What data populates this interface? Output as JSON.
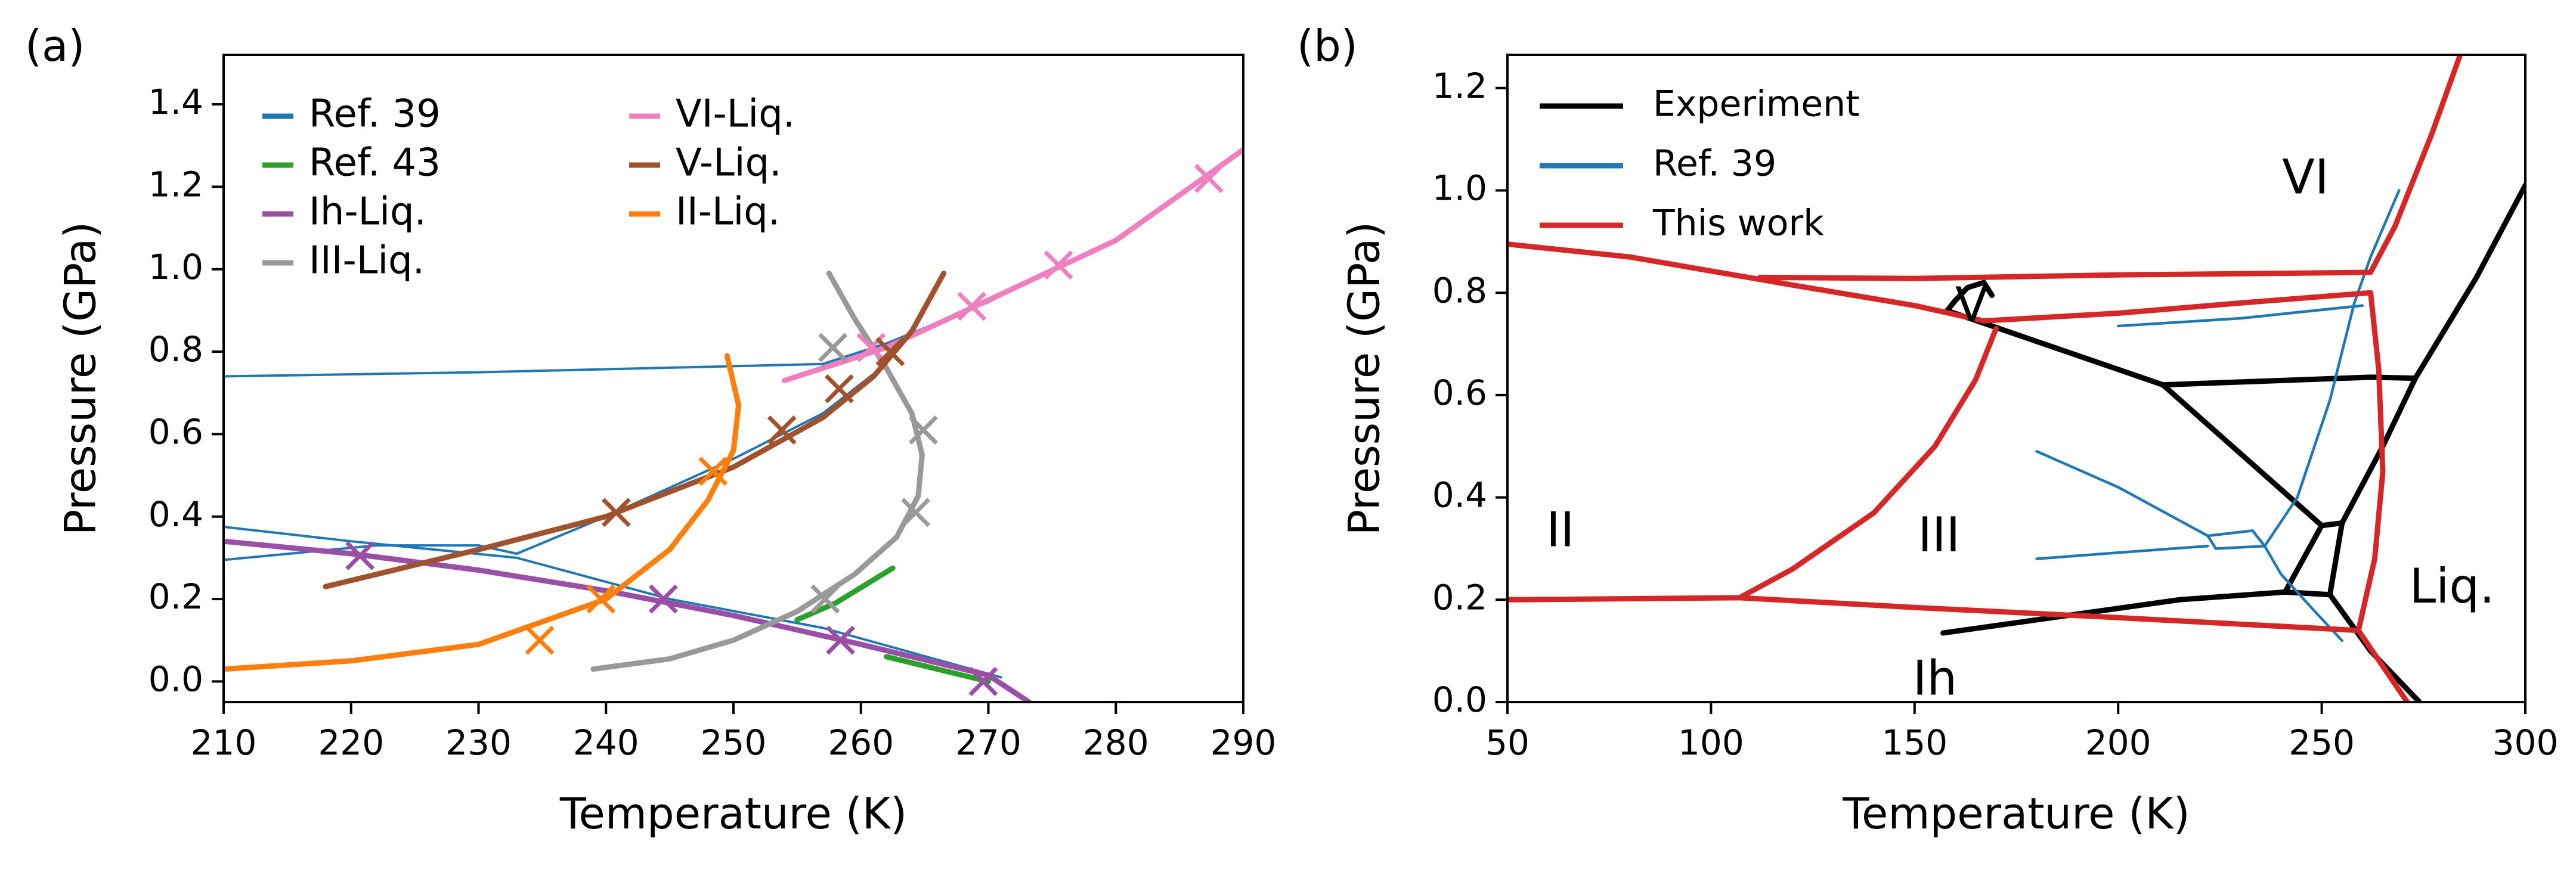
{
  "chart_data": [
    {
      "panel": "(a)",
      "type": "line",
      "xlabel": "Temperature (K)",
      "ylabel": "Pressure (GPa)",
      "xlim": [
        210,
        290
      ],
      "ylim": [
        -0.05,
        1.52
      ],
      "xticks": [
        210,
        220,
        230,
        240,
        250,
        260,
        270,
        280,
        290
      ],
      "yticks": [
        0.0,
        0.2,
        0.4,
        0.6,
        0.8,
        1.0,
        1.2,
        1.4
      ],
      "tick_labels_y": [
        "0.0",
        "0.2",
        "0.4",
        "0.6",
        "0.8",
        "1.0",
        "1.2",
        "1.4"
      ],
      "legend_position": "top-left",
      "series": [
        {
          "name": "Ref. 39",
          "color": "#1f77b4",
          "kind": "line",
          "width": 4,
          "segments": [
            [
              [
                210,
                0.74
              ],
              [
                230,
                0.75
              ],
              [
                257,
                0.77
              ],
              [
                262,
                0.82
              ],
              [
                270,
                0.92
              ],
              [
                275,
                1.0
              ]
            ],
            [
              [
                210,
                0.375
              ],
              [
                220,
                0.34
              ],
              [
                233,
                0.3
              ],
              [
                245,
                0.2
              ],
              [
                257,
                0.13
              ],
              [
                271,
                0.01
              ]
            ],
            [
              [
                210,
                0.295
              ],
              [
                222,
                0.33
              ],
              [
                230,
                0.33
              ],
              [
                233,
                0.31
              ]
            ],
            [
              [
                233,
                0.31
              ],
              [
                240,
                0.4
              ],
              [
                250,
                0.54
              ],
              [
                257,
                0.65
              ],
              [
                262,
                0.77
              ]
            ]
          ]
        },
        {
          "name": "Ref. 43",
          "color": "#2ca02c",
          "kind": "line",
          "width": 9,
          "segments": [
            [
              [
                255,
                0.15
              ],
              [
                258,
                0.19
              ],
              [
                262.5,
                0.275
              ]
            ],
            [
              [
                262,
                0.06
              ],
              [
                266,
                0.03
              ],
              [
                270,
                0.0
              ]
            ]
          ]
        },
        {
          "name": "Ih-Liq.",
          "color": "#9a4fa6",
          "kind": "line",
          "width": 9,
          "points": [
            [
              210,
              0.34
            ],
            [
              220,
              0.31
            ],
            [
              230,
              0.27
            ],
            [
              240,
              0.22
            ],
            [
              250,
              0.16
            ],
            [
              260,
              0.09
            ],
            [
              270,
              0.015
            ],
            [
              273.2,
              -0.05
            ]
          ],
          "markers": [
            [
              220.7,
              0.305
            ],
            [
              244.5,
              0.2
            ],
            [
              258.4,
              0.1
            ],
            [
              269.6,
              0.0
            ]
          ]
        },
        {
          "name": "III-Liq.",
          "color": "#999999",
          "kind": "line",
          "width": 9,
          "points": [
            [
              239,
              0.03
            ],
            [
              245,
              0.055
            ],
            [
              250,
              0.1
            ],
            [
              255,
              0.17
            ],
            [
              259.5,
              0.26
            ],
            [
              262.8,
              0.35
            ],
            [
              264.5,
              0.45
            ],
            [
              264.8,
              0.55
            ],
            [
              264,
              0.65
            ],
            [
              262,
              0.76
            ],
            [
              259.5,
              0.88
            ],
            [
              257.5,
              0.99
            ]
          ],
          "markers": [
            [
              257.2,
              0.2
            ],
            [
              264.3,
              0.41
            ],
            [
              264.9,
              0.61
            ],
            [
              257.8,
              0.81
            ]
          ]
        },
        {
          "name": "VI-Liq.",
          "color": "#f07fbf",
          "kind": "line",
          "width": 9,
          "points": [
            [
              254,
              0.73
            ],
            [
              262,
              0.81
            ],
            [
              270,
              0.925
            ],
            [
              280,
              1.07
            ],
            [
              290,
              1.29
            ]
          ],
          "markers": [
            [
              260.8,
              0.81
            ],
            [
              268.7,
              0.91
            ],
            [
              275.5,
              1.01
            ],
            [
              287.3,
              1.22
            ]
          ]
        },
        {
          "name": "V-Liq.",
          "color": "#a0522d",
          "kind": "line",
          "width": 9,
          "points": [
            [
              218,
              0.23
            ],
            [
              230,
              0.32
            ],
            [
              240,
              0.4
            ],
            [
              250,
              0.52
            ],
            [
              257,
              0.64
            ],
            [
              261,
              0.74
            ],
            [
              264,
              0.85
            ],
            [
              266.5,
              0.99
            ]
          ],
          "markers": [
            [
              240.8,
              0.41
            ],
            [
              253.8,
              0.61
            ],
            [
              258.3,
              0.71
            ],
            [
              262.3,
              0.8
            ]
          ]
        },
        {
          "name": "II-Liq.",
          "color": "#ff7f0e",
          "kind": "line",
          "width": 9,
          "points": [
            [
              210,
              0.03
            ],
            [
              220,
              0.05
            ],
            [
              230,
              0.09
            ],
            [
              240,
              0.2
            ],
            [
              245,
              0.32
            ],
            [
              248,
              0.44
            ],
            [
              250,
              0.56
            ],
            [
              250.4,
              0.67
            ],
            [
              249.5,
              0.79
            ]
          ],
          "markers": [
            [
              234.8,
              0.1
            ],
            [
              239.6,
              0.2
            ],
            [
              248.4,
              0.51
            ]
          ]
        }
      ]
    },
    {
      "panel": "(b)",
      "type": "line",
      "xlabel": "Temperature (K)",
      "ylabel": "Pressure (GPa)",
      "xlim": [
        50,
        300
      ],
      "ylim": [
        0.0,
        1.265
      ],
      "xticks": [
        50,
        100,
        150,
        200,
        250,
        300
      ],
      "yticks": [
        0.0,
        0.2,
        0.4,
        0.6,
        0.8,
        1.0,
        1.2
      ],
      "tick_labels_y": [
        "0.0",
        "0.2",
        "0.4",
        "0.6",
        "0.8",
        "1.0",
        "1.2"
      ],
      "legend_position": "top-left",
      "region_labels": [
        {
          "text": "VI",
          "x": 246,
          "y": 1.02
        },
        {
          "text": "V",
          "x": 164,
          "y": 0.77
        },
        {
          "text": "II",
          "x": 63,
          "y": 0.33
        },
        {
          "text": "III",
          "x": 156,
          "y": 0.32
        },
        {
          "text": "Liq.",
          "x": 282,
          "y": 0.22
        },
        {
          "text": "Ih",
          "x": 155,
          "y": 0.04
        }
      ],
      "series": [
        {
          "name": "Experiment",
          "color": "#000000",
          "kind": "line",
          "width": 9,
          "segments": [
            [
              [
                158,
                0.765
              ],
              [
                211,
                0.62
              ],
              [
                250,
                0.345
              ]
            ],
            [
              [
                211,
                0.62
              ],
              [
                262,
                0.635
              ],
              [
                273,
                0.633
              ]
            ],
            [
              [
                250,
                0.345
              ],
              [
                255,
                0.35
              ],
              [
                252,
                0.21
              ]
            ],
            [
              [
                252,
                0.21
              ],
              [
                241,
                0.215
              ],
              [
                215,
                0.2
              ],
              [
                157,
                0.135
              ]
            ],
            [
              [
                241,
                0.215
              ],
              [
                250,
                0.345
              ]
            ],
            [
              [
                255,
                0.35
              ],
              [
                265,
                0.5
              ],
              [
                273,
                0.633
              ]
            ],
            [
              [
                273,
                0.633
              ],
              [
                288,
                0.83
              ],
              [
                300,
                1.01
              ]
            ],
            [
              [
                252,
                0.21
              ],
              [
                262,
                0.1
              ],
              [
                274,
                0.0
              ]
            ],
            [
              [
                158,
                0.765
              ],
              [
                160,
                0.785
              ],
              [
                163,
                0.81
              ]
            ],
            [
              [
                163,
                0.81
              ],
              [
                167,
                0.82
              ],
              [
                169,
                0.795
              ]
            ]
          ]
        },
        {
          "name": "Ref. 39",
          "color": "#1f77b4",
          "kind": "line",
          "width": 4.5,
          "segments": [
            [
              [
                180,
                0.49
              ],
              [
                200,
                0.42
              ],
              [
                222,
                0.325
              ],
              [
                224,
                0.3
              ]
            ],
            [
              [
                180,
                0.28
              ],
              [
                205,
                0.295
              ],
              [
                222,
                0.305
              ]
            ],
            [
              [
                222,
                0.325
              ],
              [
                233,
                0.335
              ],
              [
                236,
                0.305
              ],
              [
                224,
                0.3
              ]
            ],
            [
              [
                236,
                0.305
              ],
              [
                244,
                0.4
              ],
              [
                252,
                0.59
              ],
              [
                258,
                0.78
              ],
              [
                262,
                0.87
              ],
              [
                269,
                1.0
              ]
            ],
            [
              [
                233,
                0.335
              ],
              [
                236,
                0.305
              ]
            ],
            [
              [
                200,
                0.735
              ],
              [
                230,
                0.75
              ],
              [
                260,
                0.775
              ]
            ],
            [
              [
                236,
                0.305
              ],
              [
                240,
                0.25
              ],
              [
                248,
                0.18
              ],
              [
                255,
                0.12
              ]
            ]
          ]
        },
        {
          "name": "This work",
          "color": "#d62728",
          "kind": "line",
          "width": 9,
          "segments": [
            [
              [
                50,
                0.895
              ],
              [
                80,
                0.87
              ],
              [
                120,
                0.815
              ],
              [
                150,
                0.775
              ],
              [
                167,
                0.745
              ],
              [
                200,
                0.76
              ],
              [
                230,
                0.78
              ],
              [
                262,
                0.8
              ]
            ],
            [
              [
                112,
                0.83
              ],
              [
                150,
                0.828
              ],
              [
                200,
                0.835
              ],
              [
                240,
                0.838
              ],
              [
                262,
                0.84
              ],
              [
                268,
                0.93
              ],
              [
                277,
                1.11
              ],
              [
                284,
                1.265
              ]
            ],
            [
              [
                262,
                0.8
              ],
              [
                264,
                0.65
              ],
              [
                265,
                0.45
              ],
              [
                263,
                0.28
              ],
              [
                259,
                0.14
              ],
              [
                265,
                0.07
              ],
              [
                271,
                0.0
              ]
            ],
            [
              [
                50,
                0.2
              ],
              [
                107,
                0.204
              ],
              [
                150,
                0.185
              ],
              [
                200,
                0.165
              ],
              [
                259,
                0.14
              ]
            ],
            [
              [
                107,
                0.204
              ],
              [
                120,
                0.26
              ],
              [
                140,
                0.37
              ],
              [
                155,
                0.5
              ],
              [
                165,
                0.63
              ],
              [
                170,
                0.73
              ]
            ]
          ]
        }
      ]
    }
  ]
}
